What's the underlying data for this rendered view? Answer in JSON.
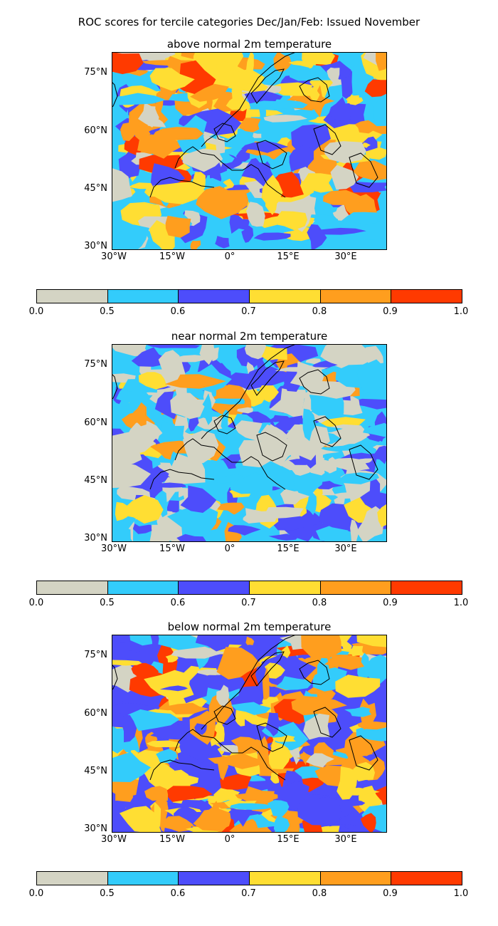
{
  "figure": {
    "suptitle": "ROC scores for tercile categories Dec/Jan/Feb: Issued November"
  },
  "panels": [
    {
      "title": "above normal 2m temperature"
    },
    {
      "title": "near normal 2m temperature"
    },
    {
      "title": "below normal 2m temperature"
    }
  ],
  "map_axes": {
    "lat_labels": [
      "75°N",
      "60°N",
      "45°N",
      "30°N"
    ],
    "lon_labels": [
      "30°W",
      "15°W",
      "0°",
      "15°E",
      "30°E"
    ]
  },
  "colorbar": {
    "tick_labels": [
      "0.0",
      "0.5",
      "0.6",
      "0.7",
      "0.8",
      "0.9",
      "1.0"
    ],
    "colors": [
      "#d4d4c4",
      "#33ccfb",
      "#4d4dfb",
      "#ffde33",
      "#ff9e1e",
      "#ff3a00"
    ]
  },
  "map_colors": {
    "land_outline": "#000000"
  }
}
